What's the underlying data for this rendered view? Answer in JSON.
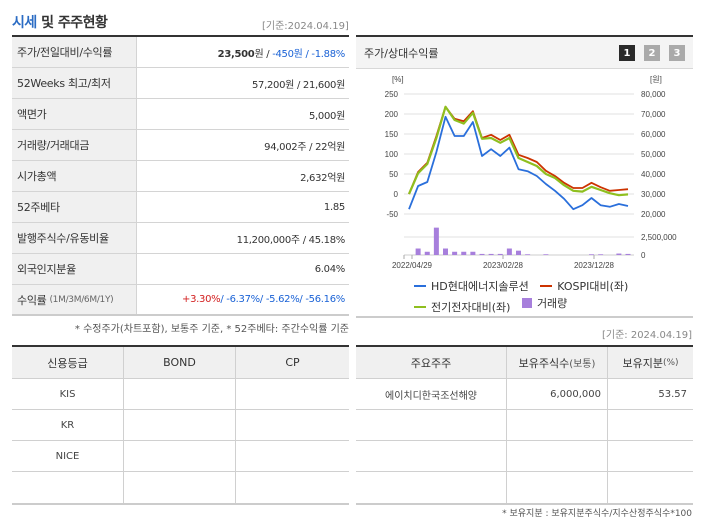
{
  "section": {
    "title_accent": "시세",
    "title_rest": " 및 주주현황",
    "asof": "[기준:2024.04.19]"
  },
  "price_table": {
    "rows": [
      {
        "label": "주가/전일대비/수익률",
        "value_main": "23,500",
        "value_unit": "원 / ",
        "change": "-450원 / -1.88%"
      },
      {
        "label": "52Weeks 최고/최저",
        "value": "57,200원 / 21,600원"
      },
      {
        "label": "액면가",
        "value": "5,000원"
      },
      {
        "label": "거래량/거래대금",
        "value": "94,002주 / 22억원"
      },
      {
        "label": "시가총액",
        "value": "2,632억원"
      },
      {
        "label": "52주베타",
        "value": "1.85"
      },
      {
        "label": "발행주식수/유동비율",
        "value": "11,200,000주 / 45.18%"
      },
      {
        "label": "외국인지분율",
        "value": "6.04%"
      },
      {
        "label": "수익률",
        "label_sub": "(1M/3M/6M/1Y)",
        "ret_1m": "+3.30%",
        "ret_rest": "/ -6.37%/ -5.62%/ -56.16%"
      }
    ],
    "footnote": "* 수정주가(차트포함), 보통주 기준, * 52주베타: 주간수익률 기준"
  },
  "chart_panel": {
    "title": "주가/상대수익률",
    "pages": [
      "1",
      "2",
      "3"
    ],
    "active_page": "1",
    "left_unit": "[%]",
    "right_unit": "[원]"
  },
  "chart_data": {
    "type": "line",
    "title": "주가/상대수익률",
    "x_ticks": [
      "2022/04/29",
      "2023/02/28",
      "2023/12/28"
    ],
    "left_axis": {
      "label": "[%]",
      "ticks": [
        250,
        200,
        150,
        100,
        50,
        0,
        -50
      ],
      "range": [
        -50,
        250
      ]
    },
    "right_axis": {
      "label": "[원]",
      "ticks": [
        "80,000",
        "70,000",
        "60,000",
        "50,000",
        "40,000",
        "30,000",
        "20,000"
      ],
      "range": [
        20000,
        80000
      ]
    },
    "volume_axis": {
      "ticks": [
        "2,500,000",
        "0"
      ]
    },
    "grid": true,
    "series": [
      {
        "name": "HD현대에너지솔루션",
        "color": "#2a6fdb",
        "values": [
          -38,
          20,
          30,
          105,
          193,
          145,
          145,
          180,
          95,
          112,
          95,
          116,
          62,
          57,
          45,
          25,
          8,
          -12,
          -38,
          -28,
          -10,
          -28,
          -32,
          -25,
          -30
        ]
      },
      {
        "name": "KOSPI대비(좌)",
        "color": "#cc3300",
        "values": [
          0,
          55,
          78,
          145,
          218,
          188,
          182,
          207,
          140,
          148,
          135,
          148,
          98,
          90,
          80,
          58,
          45,
          28,
          15,
          15,
          28,
          17,
          8,
          10,
          12
        ]
      },
      {
        "name": "전기전자대비(좌)",
        "color": "#8fbf1f",
        "values": [
          0,
          52,
          75,
          140,
          218,
          185,
          176,
          203,
          138,
          140,
          128,
          140,
          90,
          80,
          70,
          50,
          40,
          22,
          8,
          6,
          18,
          10,
          2,
          -3,
          -1
        ]
      },
      {
        "name": "거래량",
        "color": "#a77fdc",
        "type": "bar",
        "values": [
          0,
          900000,
          450000,
          3800000,
          900000,
          450000,
          450000,
          450000,
          150000,
          150000,
          150000,
          900000,
          600000,
          100000,
          0,
          100000,
          0,
          0,
          0,
          0,
          100000,
          100000,
          0,
          200000,
          150000
        ]
      }
    ],
    "legend": [
      "HD현대에너지솔루션",
      "KOSPI대비(좌)",
      "전기전자대비(좌)",
      "거래량"
    ]
  },
  "credit_table": {
    "headers": [
      "신용등급",
      "BOND",
      "CP"
    ],
    "rows": [
      [
        "KIS",
        "",
        ""
      ],
      [
        "KR",
        "",
        ""
      ],
      [
        "NICE",
        "",
        ""
      ],
      [
        "",
        "",
        ""
      ]
    ]
  },
  "holder_table": {
    "asof": "[기준: 2024.04.19]",
    "headers": [
      "주요주주",
      "보유주식수",
      "(보통)",
      "보유지분",
      "(%)"
    ],
    "rows": [
      [
        "에이치디한국조선해양",
        "6,000,000",
        "53.57"
      ],
      [
        "",
        "",
        ""
      ],
      [
        "",
        "",
        ""
      ],
      [
        "",
        "",
        ""
      ]
    ],
    "footnote": "* 보유지분 : 보유지분주식수/지수산정주식수*100"
  }
}
